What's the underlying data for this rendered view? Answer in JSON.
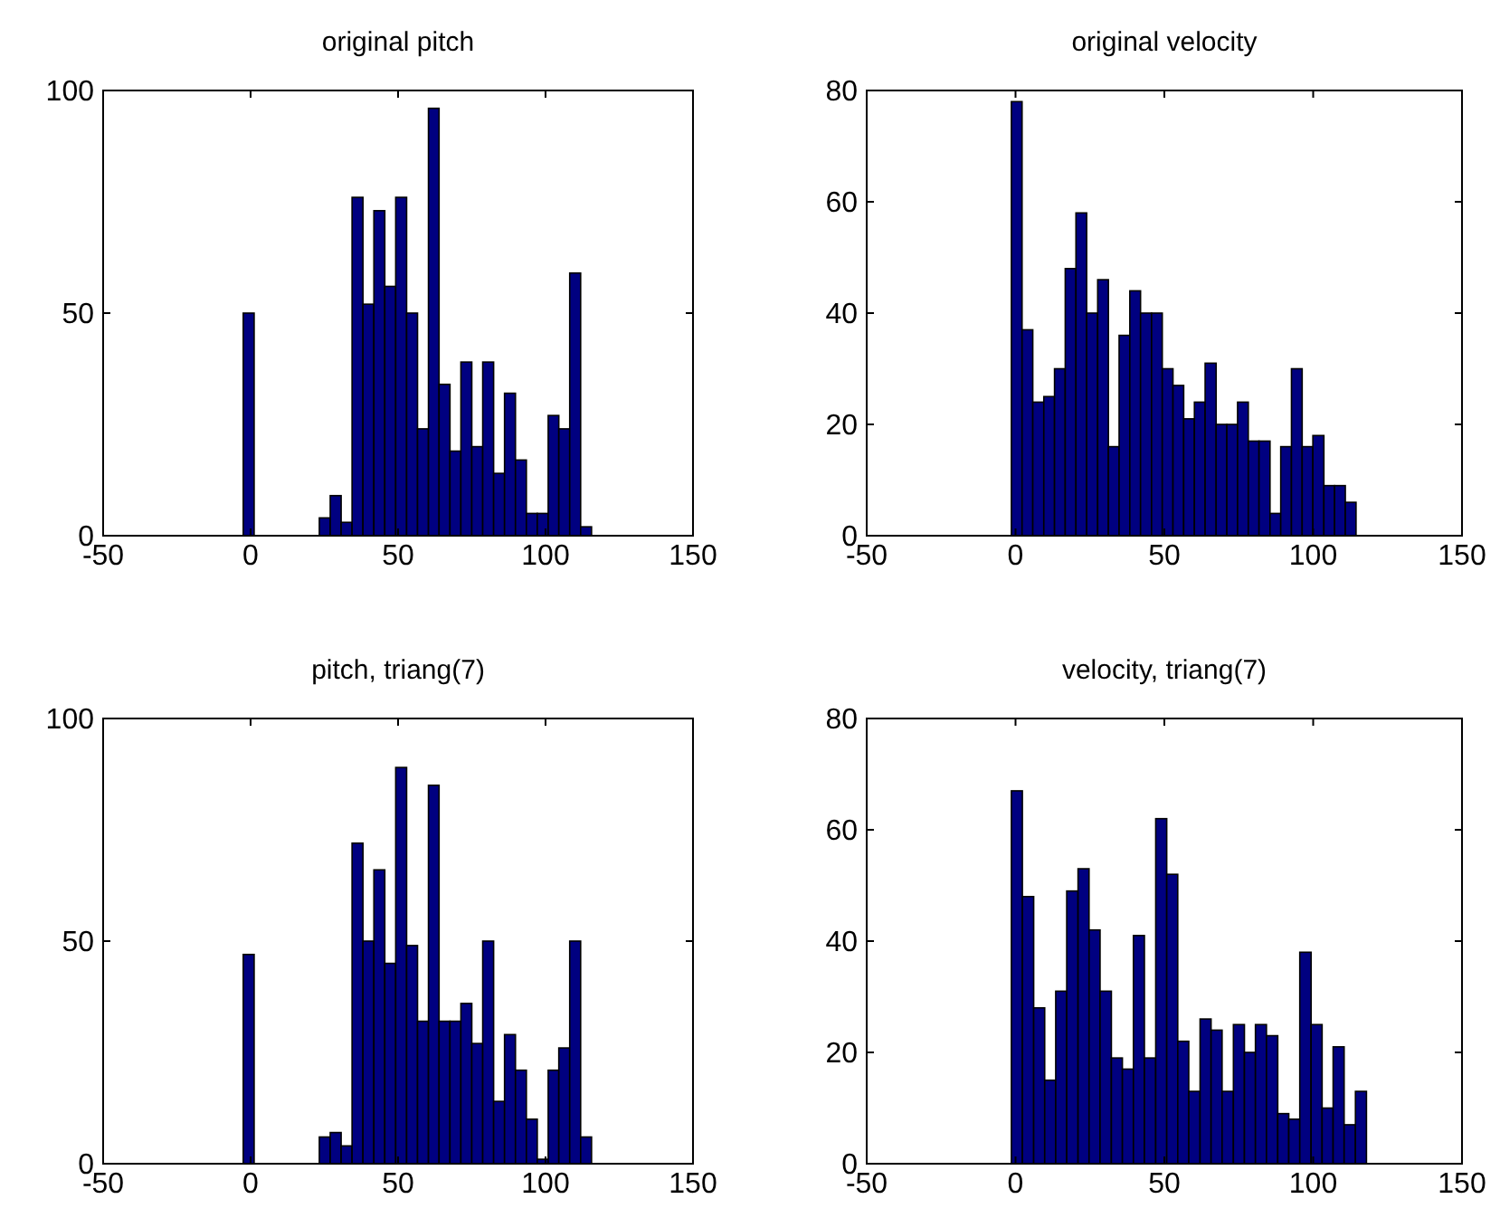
{
  "chart_data": [
    {
      "type": "histogram",
      "title": "original pitch",
      "color": "#000080",
      "xlim": [
        -50,
        150
      ],
      "xticks": [
        -50,
        0,
        50,
        100,
        150
      ],
      "ylim": [
        0,
        100
      ],
      "yticks": [
        0,
        50,
        100
      ],
      "bins": [
        -2.5,
        1.2,
        4.9,
        8.6,
        12.3,
        16.0,
        19.7,
        23.3,
        27.0,
        30.7,
        34.4,
        38.1,
        41.8,
        45.5,
        49.2,
        52.9,
        56.6,
        60.3,
        63.9,
        67.6,
        71.3,
        75.0,
        78.7,
        82.4,
        86.1,
        89.8,
        93.5,
        97.2,
        100.9,
        104.5,
        108.2,
        111.9,
        115.6
      ],
      "values": [
        50,
        0,
        0,
        0,
        0,
        0,
        0,
        4,
        9,
        3,
        76,
        52,
        73,
        56,
        76,
        50,
        24,
        96,
        34,
        19,
        39,
        20,
        39,
        14,
        32,
        17,
        5,
        5,
        27,
        24,
        59,
        2
      ]
    },
    {
      "type": "histogram",
      "title": "original velocity",
      "color": "#000080",
      "xlim": [
        -50,
        150
      ],
      "xticks": [
        -50,
        0,
        50,
        100,
        150
      ],
      "ylim": [
        0,
        80
      ],
      "yticks": [
        0,
        20,
        40,
        60,
        80
      ],
      "bins": [
        -1.4,
        2.2,
        5.8,
        9.5,
        13.1,
        16.7,
        20.3,
        23.9,
        27.6,
        31.2,
        34.8,
        38.4,
        42.0,
        45.7,
        49.3,
        52.9,
        56.5,
        60.1,
        63.7,
        67.4,
        71.0,
        74.6,
        78.2,
        81.8,
        85.5,
        89.1,
        92.7,
        96.3,
        99.9,
        103.6,
        107.2,
        110.8,
        114.4
      ],
      "values": [
        78,
        37,
        24,
        25,
        30,
        48,
        58,
        40,
        46,
        16,
        36,
        44,
        40,
        40,
        30,
        27,
        21,
        24,
        31,
        20,
        20,
        24,
        17,
        17,
        4,
        16,
        30,
        16,
        18,
        9,
        9,
        6
      ]
    },
    {
      "type": "histogram",
      "title": "pitch, triang(7)",
      "color": "#000080",
      "xlim": [
        -50,
        150
      ],
      "xticks": [
        -50,
        0,
        50,
        100,
        150
      ],
      "ylim": [
        0,
        100
      ],
      "yticks": [
        0,
        50,
        100
      ],
      "bins": [
        -2.5,
        1.2,
        4.9,
        8.6,
        12.3,
        16.0,
        19.7,
        23.3,
        27.0,
        30.7,
        34.4,
        38.1,
        41.8,
        45.5,
        49.2,
        52.9,
        56.6,
        60.3,
        63.9,
        67.6,
        71.3,
        75.0,
        78.7,
        82.4,
        86.1,
        89.8,
        93.5,
        97.2,
        100.9,
        104.5,
        108.2,
        111.9,
        115.6
      ],
      "values": [
        47,
        0,
        0,
        0,
        0,
        0,
        0,
        6,
        7,
        4,
        72,
        50,
        66,
        45,
        89,
        49,
        32,
        85,
        32,
        32,
        36,
        27,
        50,
        14,
        29,
        21,
        10,
        1,
        21,
        26,
        50,
        6
      ]
    },
    {
      "type": "histogram",
      "title": "velocity, triang(7)",
      "color": "#000080",
      "xlim": [
        -50,
        150
      ],
      "xticks": [
        -50,
        0,
        50,
        100,
        150
      ],
      "ylim": [
        0,
        80
      ],
      "yticks": [
        0,
        20,
        40,
        60,
        80
      ],
      "bins": [
        -1.4,
        2.3,
        6.1,
        9.8,
        13.5,
        17.2,
        21.0,
        24.7,
        28.4,
        32.2,
        35.9,
        39.6,
        43.3,
        47.1,
        50.8,
        54.5,
        58.2,
        62.0,
        65.7,
        69.4,
        73.2,
        76.9,
        80.6,
        84.3,
        88.1,
        91.8,
        95.5,
        99.3,
        103.0,
        106.7,
        110.4,
        114.2,
        117.9
      ],
      "values": [
        67,
        48,
        28,
        15,
        31,
        49,
        53,
        42,
        31,
        19,
        17,
        41,
        19,
        62,
        52,
        22,
        13,
        26,
        24,
        13,
        25,
        20,
        25,
        23,
        9,
        8,
        38,
        25,
        10,
        21,
        7,
        13
      ]
    }
  ]
}
